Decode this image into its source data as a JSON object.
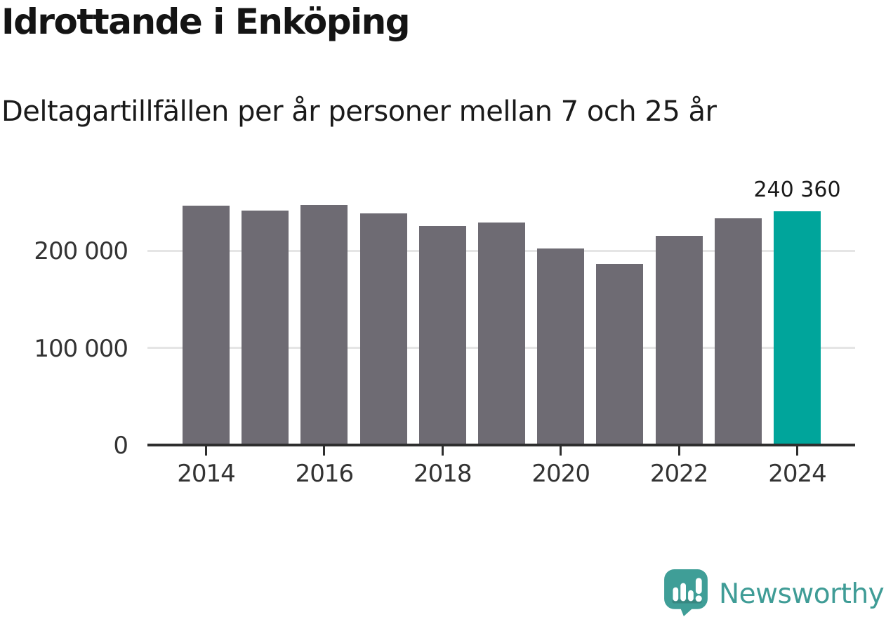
{
  "header": {
    "title": "Idrottande i Enköping",
    "subtitle": "Deltagartillfällen per år personer mellan 7 och 25 år"
  },
  "chart_data": {
    "type": "bar",
    "categories": [
      2014,
      2015,
      2016,
      2017,
      2018,
      2019,
      2020,
      2021,
      2022,
      2023,
      2024
    ],
    "values": [
      246000,
      241000,
      247000,
      238000,
      225000,
      229000,
      202000,
      186000,
      215000,
      233000,
      240360
    ],
    "title": "Idrottande i Enköping",
    "subtitle": "Deltagartillfällen per år personer mellan 7 och 25 år",
    "xlabel": "",
    "ylabel": "",
    "ylim": [
      0,
      273000
    ],
    "grid": "horizontal-light",
    "legend": "none",
    "bar_color": "#6e6b73",
    "highlight": {
      "category": 2024,
      "label": "240 360",
      "color": "#00a59b"
    },
    "y_axis": {
      "ticks": [
        {
          "value": 0,
          "label": "0"
        },
        {
          "value": 100000,
          "label": "100 000"
        },
        {
          "value": 200000,
          "label": "200 000"
        }
      ]
    },
    "x_axis": {
      "tick_labels": [
        "2014",
        "2016",
        "2018",
        "2020",
        "2022",
        "2024"
      ]
    }
  },
  "footer": {
    "brand_name": "Newsworthy",
    "brand_color": "#3f9c96",
    "logo_icon": "newsworthy-speech-bubble-barchart-icon"
  }
}
